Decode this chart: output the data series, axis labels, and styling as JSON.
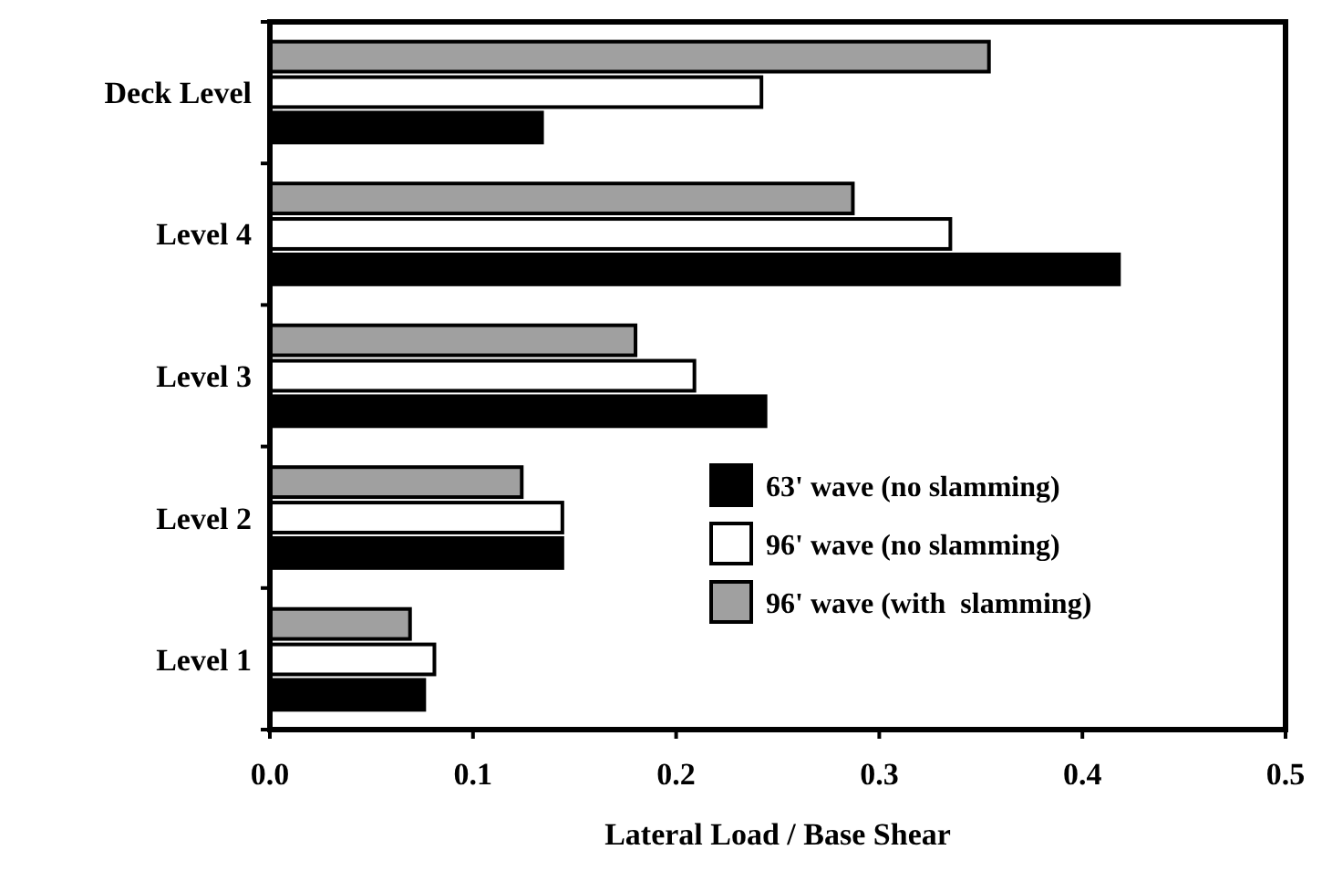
{
  "chart_data": {
    "type": "bar",
    "orientation": "horizontal",
    "xlabel": "Lateral Load / Base Shear",
    "categories": [
      "Deck Level",
      "Level 4",
      "Level 3",
      "Level 2",
      "Level 1"
    ],
    "series": [
      {
        "name": "96' wave (with  slamming)",
        "color": "#a0a0a0",
        "values": [
          0.354,
          0.287,
          0.18,
          0.124,
          0.069
        ]
      },
      {
        "name": "96' wave (no slamming)",
        "color": "#ffffff",
        "values": [
          0.242,
          0.335,
          0.209,
          0.144,
          0.081
        ]
      },
      {
        "name": "63' wave (no slamming)",
        "color": "#000000",
        "values": [
          0.134,
          0.418,
          0.244,
          0.144,
          0.076
        ]
      }
    ],
    "xlim": [
      0,
      0.5
    ],
    "xticks": [
      {
        "value": 0,
        "label": "0.0"
      },
      0.1,
      0.2,
      0.3,
      0.4,
      0.5
    ],
    "legend": "right",
    "grid": false
  }
}
